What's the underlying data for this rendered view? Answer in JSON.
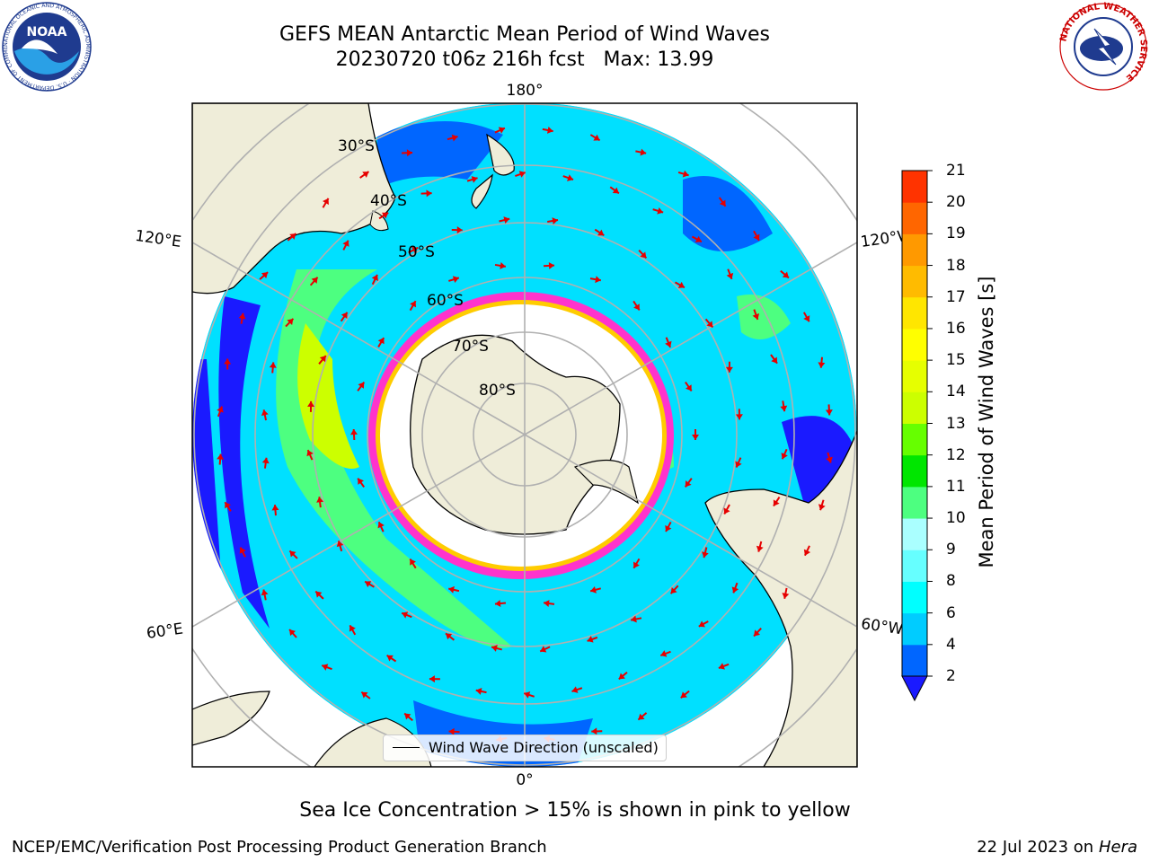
{
  "title": {
    "line1": "GEFS MEAN Antarctic Mean Period of Wind Waves",
    "line2": "20230720 t06z 216h fcst   Max: 13.99"
  },
  "map": {
    "longitude_labels": {
      "top": "180°",
      "bottom": "0°",
      "upper_left": "120°E",
      "upper_right": "120°W",
      "lower_left": "60°E",
      "lower_right": "60°W"
    },
    "latitude_labels": [
      "30°S",
      "40°S",
      "50°S",
      "60°S",
      "70°S",
      "80°S"
    ],
    "legend_label": "Wind Wave Direction (unscaled)",
    "arrow_color": "#e60000",
    "land_color": "#efedd9",
    "ice_color": "#ff33cc"
  },
  "colorbar": {
    "label": "Mean Period of Wind Waves [s]",
    "ticks": [
      "2",
      "4",
      "6",
      "8",
      "9",
      "10",
      "11",
      "12",
      "13",
      "14",
      "15",
      "16",
      "17",
      "18",
      "19",
      "20",
      "21"
    ],
    "colors": [
      "#0066ff",
      "#00ccff",
      "#00ffff",
      "#66ffff",
      "#aaffff",
      "#4dff80",
      "#00e600",
      "#66ff00",
      "#ccff00",
      "#e6ff00",
      "#ffff00",
      "#ffe600",
      "#ffbb00",
      "#ff9900",
      "#ff6600",
      "#ff3300",
      "#ff0000"
    ],
    "under_color": "#1a1aff"
  },
  "caption": "Sea Ice Concentration > 15% is shown in pink to yellow",
  "footer": {
    "left": "NCEP/EMC/Verification Post Processing Product Generation Branch",
    "right_date": "22 Jul 2023 on ",
    "right_host": "Hera"
  },
  "logos": {
    "left": "NOAA",
    "left_ring": "NATIONAL OCEANIC AND ATMOSPHERIC ADMINISTRATION · U.S. DEPARTMENT OF COMMERCE",
    "right_ring": "NATIONAL WEATHER SERVICE"
  }
}
